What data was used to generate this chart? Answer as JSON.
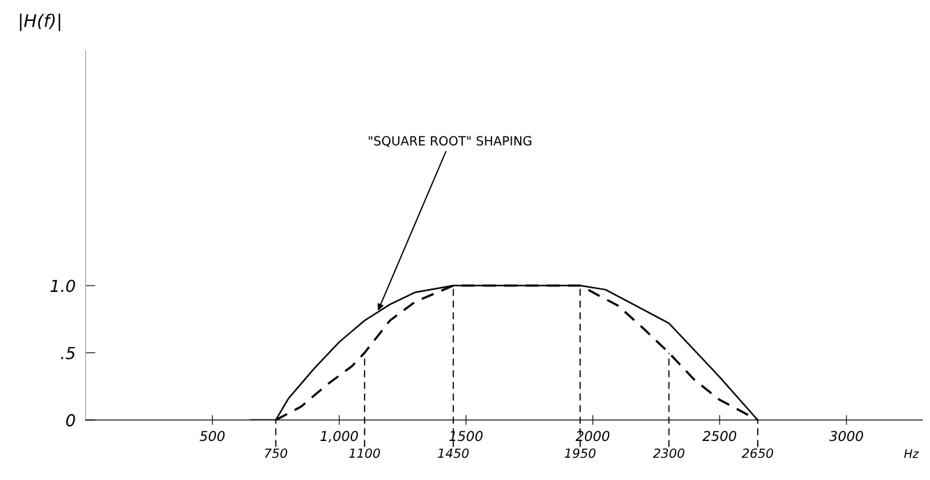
{
  "chart_data": {
    "type": "line",
    "ylabel": "|H(f)|",
    "xlabel": "Hz",
    "xlim": [
      0,
      3300
    ],
    "ylim": [
      0,
      2.75
    ],
    "xticks": [
      {
        "value": 500,
        "label": "500"
      },
      {
        "value": 1000,
        "label": "1,000"
      },
      {
        "value": 1500,
        "label": "1500"
      },
      {
        "value": 2000,
        "label": "2000"
      },
      {
        "value": 2500,
        "label": "2500"
      },
      {
        "value": 3000,
        "label": "3000"
      }
    ],
    "yticks": [
      {
        "value": 0,
        "label": "0"
      },
      {
        "value": 0.5,
        "label": ".5"
      },
      {
        "value": 1.0,
        "label": "1.0"
      }
    ],
    "grid": false,
    "marker": "none",
    "series": [
      {
        "color": "#000000",
        "line_style": "solid",
        "x": [
          650,
          750,
          800,
          900,
          1000,
          1100,
          1200,
          1300,
          1450,
          1950,
          2050,
          2150,
          2300,
          2400,
          2500,
          2650
        ],
        "values": [
          0,
          0,
          0.16,
          0.38,
          0.58,
          0.74,
          0.86,
          0.95,
          1.0,
          1.0,
          0.97,
          0.87,
          0.72,
          0.52,
          0.32,
          0
        ]
      },
      {
        "color": "#000000",
        "line_style": "dashed",
        "x": [
          750,
          850,
          950,
          1050,
          1100,
          1200,
          1300,
          1450,
          1950,
          2100,
          2200,
          2300,
          2400,
          2500,
          2650
        ],
        "values": [
          0,
          0.1,
          0.26,
          0.4,
          0.5,
          0.74,
          0.88,
          1.0,
          1.0,
          0.85,
          0.68,
          0.5,
          0.3,
          0.15,
          0
        ]
      }
    ],
    "ref_lines": [
      {
        "axis": "x",
        "value": 750,
        "label": "750",
        "line_style": "dashed",
        "color": "#000000"
      },
      {
        "axis": "x",
        "value": 1100,
        "label": "1100",
        "line_style": "dashed",
        "color": "#000000"
      },
      {
        "axis": "x",
        "value": 1450,
        "label": "1450",
        "line_style": "dashed",
        "color": "#000000"
      },
      {
        "axis": "x",
        "value": 1950,
        "label": "1950",
        "line_style": "dashed",
        "color": "#000000"
      },
      {
        "axis": "x",
        "value": 2300,
        "label": "2300",
        "line_style": "dashed",
        "color": "#000000"
      },
      {
        "axis": "x",
        "value": 2650,
        "label": "2650",
        "line_style": "dashed",
        "color": "#000000"
      }
    ],
    "annotations": [
      {
        "text": "\"SQUARE ROOT\" SHAPING",
        "x": 1150,
        "y": 0.8
      }
    ]
  }
}
